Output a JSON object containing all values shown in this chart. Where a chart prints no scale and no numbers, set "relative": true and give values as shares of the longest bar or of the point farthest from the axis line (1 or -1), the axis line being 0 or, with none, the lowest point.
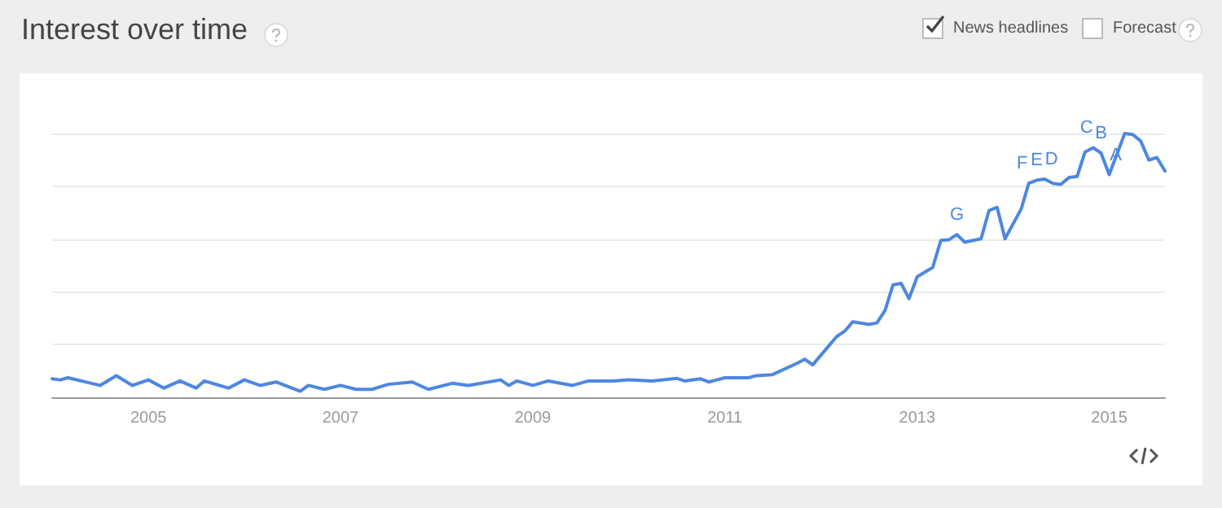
{
  "chart_data": {
    "type": "line",
    "title": "Interest over time",
    "relative": true,
    "grid": "y",
    "marker": "none",
    "line_style": "solid",
    "x": [
      "2004-01",
      "2004-02",
      "2004-03",
      "2004-07",
      "2004-09",
      "2004-11",
      "2005-01",
      "2005-03",
      "2005-05",
      "2005-07",
      "2005-08",
      "2005-11",
      "2006-01",
      "2006-03",
      "2006-05",
      "2006-08",
      "2006-09",
      "2006-11",
      "2007-01",
      "2007-03",
      "2007-05",
      "2007-07",
      "2007-10",
      "2007-12",
      "2008-03",
      "2008-05",
      "2008-09",
      "2008-10",
      "2008-11",
      "2009-01",
      "2009-03",
      "2009-06",
      "2009-08",
      "2009-11",
      "2010-01",
      "2010-04",
      "2010-07",
      "2010-08",
      "2010-10",
      "2010-11",
      "2010-12",
      "2011-01",
      "2011-04",
      "2011-05",
      "2011-07",
      "2011-10",
      "2011-11",
      "2011-12",
      "2012-03",
      "2012-04",
      "2012-05",
      "2012-07",
      "2012-08",
      "2012-09",
      "2012-10",
      "2012-11",
      "2012-12",
      "2013-01",
      "2013-03",
      "2013-04",
      "2013-05",
      "2013-06",
      "2013-07",
      "2013-09",
      "2013-10",
      "2013-11",
      "2013-12",
      "2014-02",
      "2014-03",
      "2014-04",
      "2014-05",
      "2014-06",
      "2014-07",
      "2014-08",
      "2014-09",
      "2014-10",
      "2014-11",
      "2014-12",
      "2015-01",
      "2015-03",
      "2015-04",
      "2015-05",
      "2015-06",
      "2015-07",
      "2015-08"
    ],
    "series": [
      {
        "color": "#4d87e0",
        "values": [
          0.07,
          0.066,
          0.074,
          0.045,
          0.082,
          0.045,
          0.066,
          0.035,
          0.062,
          0.035,
          0.062,
          0.035,
          0.066,
          0.045,
          0.058,
          0.023,
          0.045,
          0.03,
          0.045,
          0.03,
          0.03,
          0.049,
          0.058,
          0.03,
          0.053,
          0.045,
          0.066,
          0.045,
          0.062,
          0.045,
          0.062,
          0.045,
          0.062,
          0.062,
          0.066,
          0.062,
          0.072,
          0.062,
          0.07,
          0.058,
          0.066,
          0.074,
          0.074,
          0.082,
          0.086,
          0.128,
          0.144,
          0.123,
          0.23,
          0.251,
          0.286,
          0.276,
          0.282,
          0.329,
          0.426,
          0.432,
          0.374,
          0.457,
          0.492,
          0.595,
          0.597,
          0.617,
          0.588,
          0.601,
          0.708,
          0.72,
          0.601,
          0.715,
          0.811,
          0.823,
          0.827,
          0.811,
          0.807,
          0.833,
          0.837,
          0.93,
          0.946,
          0.926,
          0.844,
          1,
          0.996,
          0.971,
          0.899,
          0.909,
          0.858
        ]
      }
    ],
    "xlim": [
      "2004-01",
      "2015-08"
    ],
    "xticks": [
      {
        "value": "2005-01",
        "label": "2005"
      },
      {
        "value": "2007-01",
        "label": "2007"
      },
      {
        "value": "2009-01",
        "label": "2009"
      },
      {
        "value": "2011-01",
        "label": "2011"
      },
      {
        "value": "2013-01",
        "label": "2013"
      },
      {
        "value": "2015-01",
        "label": "2015"
      }
    ],
    "annotations": [
      "News headlines",
      "Forecast",
      {
        "text": "G",
        "x": "2013-06",
        "y": 0.617
      },
      {
        "text": "F",
        "x": "2014-03",
        "y": 0.811
      },
      {
        "text": "E",
        "x": "2014-04",
        "y": 0.823
      },
      {
        "text": "D",
        "x": "2014-05",
        "y": 0.827
      },
      {
        "text": "C",
        "x": "2014-11",
        "y": 0.946
      },
      {
        "text": "B",
        "x": "2014-12",
        "y": 0.926
      },
      {
        "text": "A",
        "x": "2015-01",
        "y": 0.844
      }
    ]
  }
}
